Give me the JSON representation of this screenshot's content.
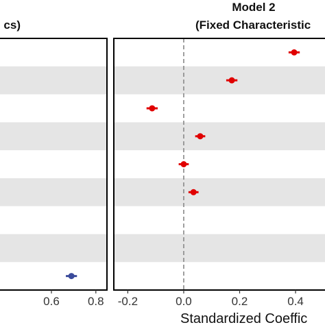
{
  "chart_data": [
    {
      "type": "scatter",
      "title_line1": "",
      "title_line2": "cs)",
      "xlim": [
        0.35,
        0.85
      ],
      "x_ticks": [
        0.6,
        0.8
      ],
      "x_tick_labels": [
        "0.6",
        "0.8"
      ],
      "xlabel": "",
      "series": [
        {
          "color": "#3B4B9B",
          "points": [
            {
              "row": 8,
              "x": 0.69,
              "err": 0.025
            }
          ]
        }
      ]
    },
    {
      "type": "scatter",
      "title_line1": "Model 2",
      "title_line2": "(Fixed Characteristic",
      "xlim": [
        -0.25,
        0.52
      ],
      "x_ticks": [
        -0.2,
        0.0,
        0.2,
        0.4
      ],
      "x_tick_labels": [
        "-0.2",
        "0.0",
        "0.2",
        "0.4"
      ],
      "reference_line_x": 0,
      "xlabel": "Standardized Coeffic",
      "series": [
        {
          "color": "#E00000",
          "points": [
            {
              "row": 0,
              "x": 0.395,
              "err": 0.02
            },
            {
              "row": 1,
              "x": 0.172,
              "err": 0.02
            },
            {
              "row": 2,
              "x": -0.113,
              "err": 0.02
            },
            {
              "row": 3,
              "x": 0.059,
              "err": 0.018
            },
            {
              "row": 4,
              "x": 0.0,
              "err": 0.018
            },
            {
              "row": 5,
              "x": 0.035,
              "err": 0.018
            }
          ]
        }
      ]
    }
  ],
  "row_count": 9,
  "colors": {
    "band": "#E5E5E5",
    "ref_line": "#888888",
    "panel_border": "#000000"
  }
}
